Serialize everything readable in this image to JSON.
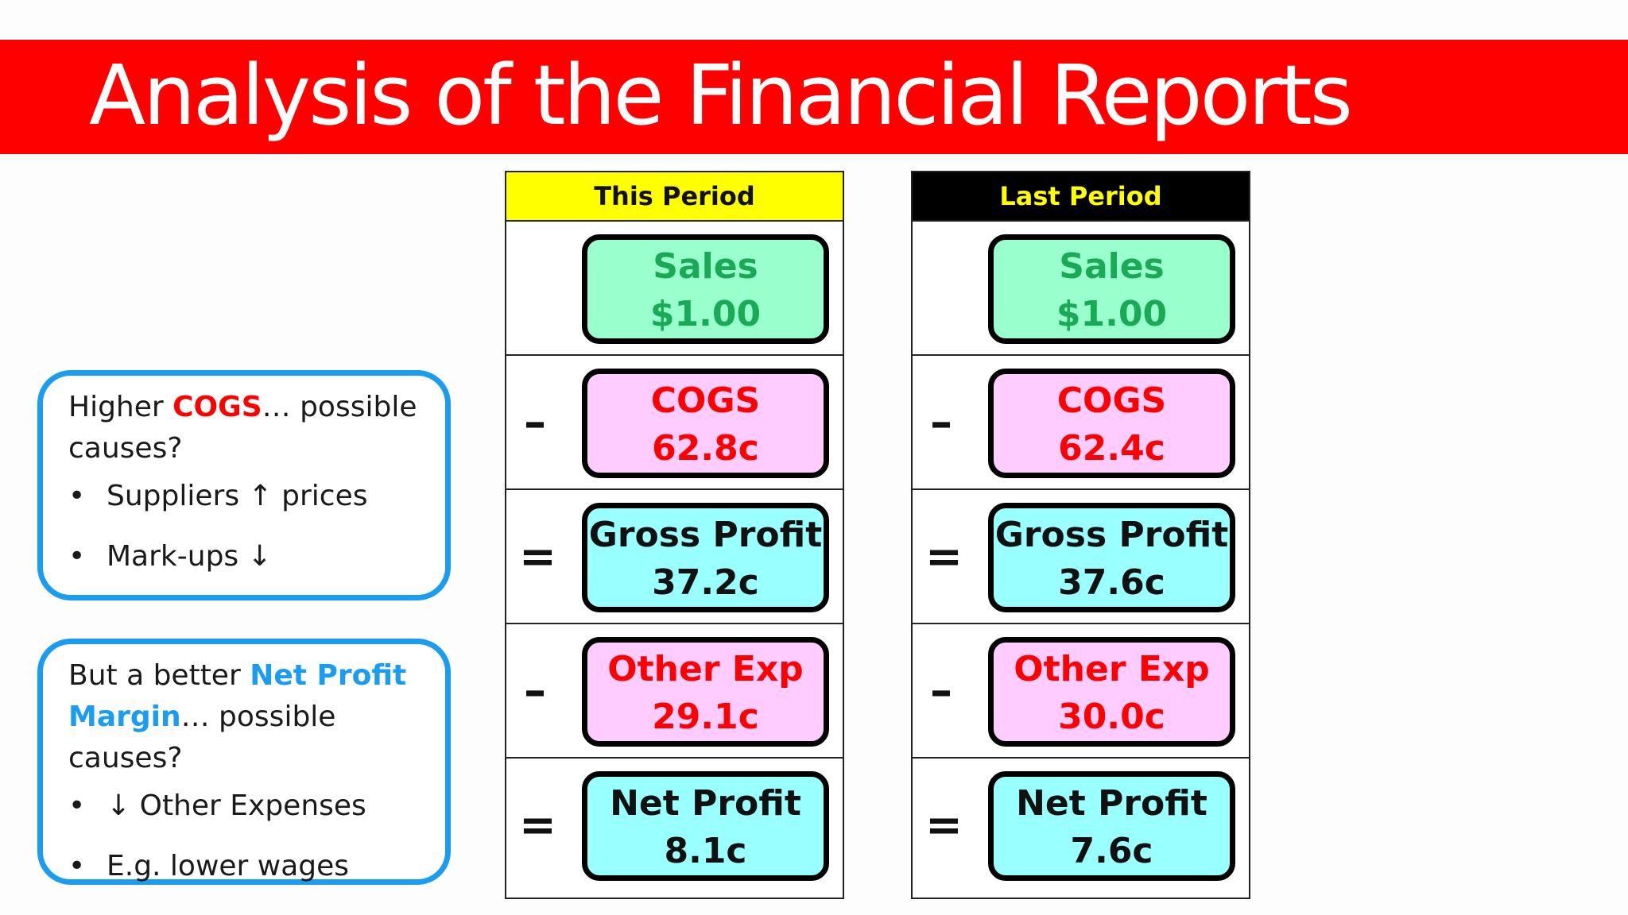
{
  "title": "Analysis of the Financial Reports",
  "callouts": [
    {
      "q_pre": "Higher ",
      "q_highlight": "COGS",
      "q_post": "… possible causes?",
      "bullets": [
        "Suppliers ↑ prices",
        "Mark-ups ↓"
      ]
    },
    {
      "q_pre": "But a better ",
      "q_highlight": "Net Profit Margin",
      "q_post": "… possible causes?",
      "bullets": [
        "↓ Other Expenses",
        "E.g. lower wages"
      ]
    }
  ],
  "this_period": {
    "header": "This Period",
    "rows": [
      {
        "op": "",
        "label": "Sales",
        "value": "$1.00"
      },
      {
        "op": "–",
        "label": "COGS",
        "value": "62.8c"
      },
      {
        "op": "=",
        "label": "Gross Profit",
        "value": "37.2c"
      },
      {
        "op": "–",
        "label": "Other Exp",
        "value": "29.1c"
      },
      {
        "op": "=",
        "label": "Net Profit",
        "value": "8.1c"
      }
    ]
  },
  "last_period": {
    "header": "Last Period",
    "rows": [
      {
        "op": "",
        "label": "Sales",
        "value": "$1.00"
      },
      {
        "op": "–",
        "label": "COGS",
        "value": "62.4c"
      },
      {
        "op": "=",
        "label": "Gross Profit",
        "value": "37.6c"
      },
      {
        "op": "–",
        "label": "Other Exp",
        "value": "30.0c"
      },
      {
        "op": "=",
        "label": "Net Profit",
        "value": "7.6c"
      }
    ]
  },
  "colors": {
    "title_bar": "#ff0000",
    "callout_border": "#1a9cf0",
    "this_period_header": "#ffff00",
    "last_period_header": "#000000",
    "sales_fill": "#99ffcc",
    "cogs_fill": "#ffccff",
    "profit_fill": "#99ffff"
  }
}
